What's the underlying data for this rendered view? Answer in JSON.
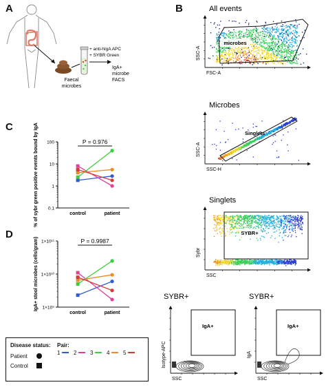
{
  "panels": {
    "A": {
      "letter": "A",
      "anti": "+ anti-hIgA APC",
      "sybr": "+ SYBR Green",
      "faecal": "Faecal\nmicrobes",
      "out": "IgA+\nmicrobe\nFACS"
    },
    "B": {
      "letter": "B",
      "all_events": {
        "title": "All events",
        "xlabel": "FSC-A",
        "ylabel": "SSC-A",
        "gate": "microbes"
      },
      "microbes": {
        "title": "Microbes",
        "xlabel": "SSC-H",
        "ylabel": "SSC-A",
        "gate": "Singlets"
      },
      "singlets": {
        "title": "Singlets",
        "xlabel": "SSC",
        "ylabel": "Sybr",
        "gate": "SYBR+"
      },
      "isotype": {
        "title": "SYBR+",
        "xlabel": "SSC",
        "ylabel": "Isotype-APC",
        "gate": "IgA+"
      },
      "iga": {
        "title": "SYBR+",
        "xlabel": "SSC",
        "ylabel": "IgA",
        "gate": "IgA+"
      }
    },
    "C": {
      "letter": "C"
    },
    "D": {
      "letter": "D"
    }
  },
  "chart_data": [
    {
      "type": "line",
      "panel": "C",
      "title": "",
      "annotation": "P = 0.976",
      "categories": [
        "control",
        "patient"
      ],
      "ylabel": "% of sybr green positive events bound by IgA",
      "yscale": "log",
      "ylim": [
        0.1,
        100
      ],
      "yticks": [
        "0.1",
        "1",
        "10",
        "100"
      ],
      "series": [
        {
          "name": "1",
          "color": "#2f5bd3",
          "values": [
            1.8,
            2.8
          ]
        },
        {
          "name": "2",
          "color": "#e0409a",
          "values": [
            8.0,
            1.0
          ]
        },
        {
          "name": "3",
          "color": "#3ccf3c",
          "values": [
            2.5,
            40.0
          ]
        },
        {
          "name": "4",
          "color": "#ee8a2a",
          "values": [
            4.0,
            5.5
          ]
        },
        {
          "name": "5",
          "color": "#d33b3b",
          "values": [
            5.5,
            1.8
          ]
        }
      ]
    },
    {
      "type": "line",
      "panel": "D",
      "title": "",
      "annotation": "P = 0.9987",
      "categories": [
        "control",
        "patient"
      ],
      "ylabel": "IgA+ stool microbes (cells/gram)",
      "yscale": "log",
      "ylim": [
        1000000000.0,
        100000000000.0
      ],
      "yticks": [
        "1×10⁹",
        "1×10¹⁰",
        "1×10¹¹"
      ],
      "series": [
        {
          "name": "1",
          "color": "#2f5bd3",
          "values": [
            2300000000.0,
            6000000000.0
          ]
        },
        {
          "name": "2",
          "color": "#e0409a",
          "values": [
            11000000000.0,
            1700000000.0
          ]
        },
        {
          "name": "3",
          "color": "#3ccf3c",
          "values": [
            5000000000.0,
            25000000000.0
          ]
        },
        {
          "name": "4",
          "color": "#ee8a2a",
          "values": [
            6500000000.0,
            9500000000.0
          ]
        },
        {
          "name": "5",
          "color": "#d33b3b",
          "values": [
            8000000000.0,
            3200000000.0
          ]
        }
      ]
    }
  ],
  "legend": {
    "disease_status_title": "Disease status:",
    "patient": "Patient",
    "control": "Control",
    "pair_title": "Pair:",
    "pairs": [
      {
        "label": "1",
        "color": "#2f5bd3"
      },
      {
        "label": "2",
        "color": "#e0409a"
      },
      {
        "label": "3",
        "color": "#3ccf3c"
      },
      {
        "label": "4",
        "color": "#ee8a2a"
      },
      {
        "label": "5",
        "color": "#d33b3b"
      }
    ]
  }
}
